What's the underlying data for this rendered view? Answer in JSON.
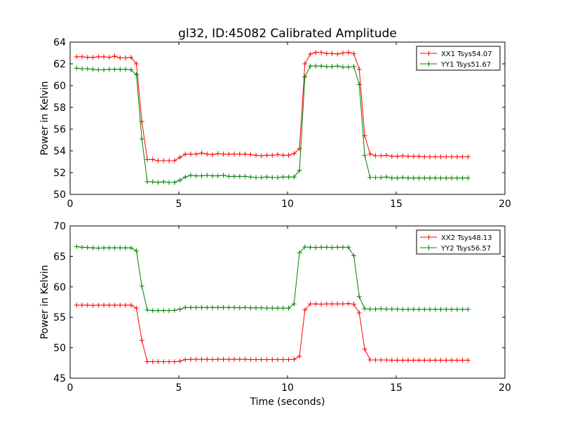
{
  "figure": {
    "title": "gl32, ID:45082 Calibrated Amplitude",
    "xlabel": "Time (seconds)"
  },
  "chart_data": [
    {
      "type": "line",
      "title": "gl32, ID:45082 Calibrated Amplitude",
      "xlabel": "",
      "ylabel": "Power in Kelvin",
      "xlim": [
        0,
        20
      ],
      "ylim": [
        50,
        64
      ],
      "xticks": [
        0,
        5,
        10,
        15,
        20
      ],
      "yticks": [
        50,
        52,
        54,
        56,
        58,
        60,
        62,
        64
      ],
      "grid": false,
      "legend_position": "top-right",
      "x": [
        0.3,
        0.55,
        0.8,
        1.05,
        1.3,
        1.55,
        1.8,
        2.05,
        2.3,
        2.55,
        2.8,
        3.05,
        3.3,
        3.55,
        3.8,
        4.05,
        4.3,
        4.55,
        4.8,
        5.05,
        5.3,
        5.55,
        5.8,
        6.05,
        6.3,
        6.55,
        6.8,
        7.05,
        7.3,
        7.55,
        7.8,
        8.05,
        8.3,
        8.55,
        8.8,
        9.05,
        9.3,
        9.55,
        9.8,
        10.05,
        10.3,
        10.55,
        10.8,
        11.05,
        11.3,
        11.55,
        11.8,
        12.05,
        12.3,
        12.55,
        12.8,
        13.05,
        13.3,
        13.55,
        13.8,
        14.05,
        14.3,
        14.55,
        14.8,
        15.05,
        15.3,
        15.55,
        15.8,
        16.05,
        16.3,
        16.55,
        16.8,
        17.05,
        17.3,
        17.55,
        17.8,
        18.05,
        18.3
      ],
      "series": [
        {
          "name": "XX1 Tsys54.07",
          "color": "#ff0000",
          "values": [
            62.65,
            62.65,
            62.6,
            62.6,
            62.65,
            62.65,
            62.6,
            62.7,
            62.55,
            62.55,
            62.6,
            62.0,
            56.7,
            53.2,
            53.2,
            53.1,
            53.1,
            53.1,
            53.1,
            53.4,
            53.7,
            53.7,
            53.7,
            53.8,
            53.7,
            53.65,
            53.75,
            53.7,
            53.7,
            53.7,
            53.7,
            53.7,
            53.65,
            53.6,
            53.55,
            53.6,
            53.6,
            53.65,
            53.6,
            53.6,
            53.75,
            54.2,
            62.0,
            62.9,
            63.05,
            63.05,
            62.95,
            62.95,
            62.9,
            63.0,
            63.05,
            62.95,
            61.5,
            55.4,
            53.7,
            53.55,
            53.55,
            53.6,
            53.5,
            53.5,
            53.55,
            53.5,
            53.5,
            53.5,
            53.45,
            53.45,
            53.45,
            53.45,
            53.45,
            53.45,
            53.45,
            53.45,
            53.45
          ]
        },
        {
          "name": "YY1 Tsys51.67",
          "color": "#008000",
          "values": [
            61.6,
            61.55,
            61.55,
            61.5,
            61.45,
            61.45,
            61.5,
            61.5,
            61.5,
            61.5,
            61.45,
            61.0,
            55.1,
            51.15,
            51.15,
            51.1,
            51.15,
            51.1,
            51.1,
            51.3,
            51.6,
            51.75,
            51.7,
            51.7,
            51.75,
            51.7,
            51.7,
            51.75,
            51.65,
            51.65,
            51.65,
            51.65,
            51.6,
            51.55,
            51.55,
            51.6,
            51.55,
            51.55,
            51.6,
            51.6,
            51.6,
            52.2,
            60.8,
            61.8,
            61.8,
            61.8,
            61.75,
            61.75,
            61.8,
            61.7,
            61.7,
            61.75,
            60.1,
            53.6,
            51.55,
            51.55,
            51.55,
            51.6,
            51.5,
            51.5,
            51.55,
            51.5,
            51.5,
            51.5,
            51.5,
            51.5,
            51.5,
            51.5,
            51.5,
            51.5,
            51.5,
            51.5,
            51.5
          ]
        }
      ]
    },
    {
      "type": "line",
      "title": "",
      "xlabel": "Time (seconds)",
      "ylabel": "Power in Kelvin",
      "xlim": [
        0,
        20
      ],
      "ylim": [
        45,
        70
      ],
      "xticks": [
        0,
        5,
        10,
        15,
        20
      ],
      "yticks": [
        45,
        50,
        55,
        60,
        65,
        70
      ],
      "grid": false,
      "legend_position": "top-right",
      "x": [
        0.3,
        0.55,
        0.8,
        1.05,
        1.3,
        1.55,
        1.8,
        2.05,
        2.3,
        2.55,
        2.8,
        3.05,
        3.3,
        3.55,
        3.8,
        4.05,
        4.3,
        4.55,
        4.8,
        5.05,
        5.3,
        5.55,
        5.8,
        6.05,
        6.3,
        6.55,
        6.8,
        7.05,
        7.3,
        7.55,
        7.8,
        8.05,
        8.3,
        8.55,
        8.8,
        9.05,
        9.3,
        9.55,
        9.8,
        10.05,
        10.3,
        10.55,
        10.8,
        11.05,
        11.3,
        11.55,
        11.8,
        12.05,
        12.3,
        12.55,
        12.8,
        13.05,
        13.3,
        13.55,
        13.8,
        14.05,
        14.3,
        14.55,
        14.8,
        15.05,
        15.3,
        15.55,
        15.8,
        16.05,
        16.3,
        16.55,
        16.8,
        17.05,
        17.3,
        17.55,
        17.8,
        18.05,
        18.3
      ],
      "series": [
        {
          "name": "XX2 Tsys48.13",
          "color": "#ff0000",
          "values": [
            57.0,
            57.0,
            57.0,
            56.95,
            57.0,
            57.0,
            57.0,
            57.0,
            57.0,
            57.0,
            57.0,
            56.5,
            51.2,
            47.7,
            47.7,
            47.7,
            47.7,
            47.7,
            47.7,
            47.8,
            48.05,
            48.1,
            48.1,
            48.1,
            48.1,
            48.05,
            48.1,
            48.1,
            48.1,
            48.1,
            48.1,
            48.1,
            48.05,
            48.05,
            48.05,
            48.05,
            48.05,
            48.05,
            48.05,
            48.05,
            48.1,
            48.6,
            56.2,
            57.2,
            57.2,
            57.15,
            57.2,
            57.2,
            57.2,
            57.2,
            57.25,
            57.15,
            55.7,
            49.8,
            48.0,
            48.0,
            48.0,
            48.0,
            47.95,
            47.95,
            47.95,
            47.95,
            47.95,
            47.95,
            47.95,
            47.95,
            47.95,
            47.95,
            47.95,
            47.95,
            47.95,
            47.95,
            47.95
          ]
        },
        {
          "name": "YY2 Tsys56.57",
          "color": "#008000",
          "values": [
            66.6,
            66.5,
            66.45,
            66.4,
            66.35,
            66.4,
            66.4,
            66.4,
            66.4,
            66.4,
            66.4,
            65.9,
            60.1,
            56.2,
            56.1,
            56.1,
            56.1,
            56.1,
            56.15,
            56.3,
            56.6,
            56.6,
            56.6,
            56.6,
            56.6,
            56.6,
            56.6,
            56.6,
            56.6,
            56.6,
            56.55,
            56.6,
            56.55,
            56.55,
            56.55,
            56.5,
            56.5,
            56.5,
            56.5,
            56.5,
            57.2,
            65.6,
            66.55,
            66.5,
            66.45,
            66.5,
            66.5,
            66.45,
            66.5,
            66.5,
            66.5,
            65.1,
            58.4,
            56.4,
            56.35,
            56.35,
            56.4,
            56.35,
            56.35,
            56.35,
            56.3,
            56.3,
            56.3,
            56.3,
            56.3,
            56.3,
            56.3,
            56.3,
            56.3,
            56.3,
            56.3,
            56.3,
            56.3
          ]
        }
      ]
    }
  ]
}
